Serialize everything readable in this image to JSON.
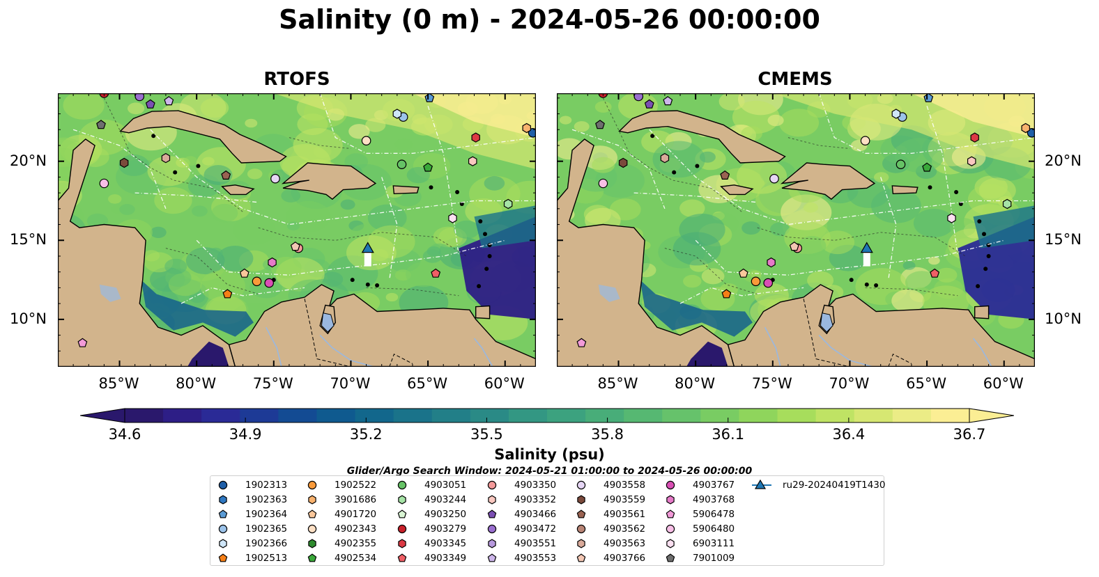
{
  "title": "Salinity (0 m) - 2024-05-26 00:00:00",
  "panels": [
    {
      "title": "RTOFS",
      "model": "rtofs"
    },
    {
      "title": "CMEMS",
      "model": "cmems"
    }
  ],
  "map_extent": {
    "lon": [
      -89,
      -58
    ],
    "lat": [
      7,
      24.3
    ]
  },
  "lon_ticks": [
    "85°W",
    "80°W",
    "75°W",
    "70°W",
    "65°W",
    "60°W"
  ],
  "lon_tick_values": [
    -85,
    -80,
    -75,
    -70,
    -65,
    -60
  ],
  "lat_ticks": [
    "20°N",
    "15°N",
    "10°N"
  ],
  "lat_tick_values": [
    20,
    15,
    10
  ],
  "colorbar": {
    "label": "Salinity (psu)",
    "tick_labels": [
      "34.6",
      "34.9",
      "35.2",
      "35.5",
      "35.8",
      "36.1",
      "36.4",
      "36.7"
    ],
    "min": 34.6,
    "max": 36.7,
    "extend": "both",
    "colormap": "haline",
    "colors": [
      "#2a186c",
      "#2d1e86",
      "#2a2a96",
      "#1d3a96",
      "#134b93",
      "#0f5a8f",
      "#12678c",
      "#1a738a",
      "#227f88",
      "#2a8a86",
      "#339783",
      "#3ca27f",
      "#48ad79",
      "#56b872",
      "#66c26b",
      "#79cc63",
      "#8fd55c",
      "#a7dd5c",
      "#bfe364",
      "#d6e772",
      "#ebec86",
      "#fbee94"
    ]
  },
  "search_window": "Glider/Argo Search Window: 2024-05-21 01:00:00 to 2024-05-26 00:00:00",
  "land_color": "#d2b48c",
  "legend": [
    {
      "id": "1902313",
      "marker": "circle",
      "color": "#1f5fa8"
    },
    {
      "id": "1902363",
      "marker": "hexagon",
      "color": "#2f78c2"
    },
    {
      "id": "1902364",
      "marker": "pentagon",
      "color": "#5b9bd5"
    },
    {
      "id": "1902365",
      "marker": "circle",
      "color": "#9cc3ea"
    },
    {
      "id": "1902366",
      "marker": "hexagon",
      "color": "#cfe6f8"
    },
    {
      "id": "1902513",
      "marker": "pentagon",
      "color": "#f57f17"
    },
    {
      "id": "1902522",
      "marker": "circle",
      "color": "#f99a3a"
    },
    {
      "id": "3901686",
      "marker": "hexagon",
      "color": "#f8b26e"
    },
    {
      "id": "4901720",
      "marker": "pentagon",
      "color": "#f9c79b"
    },
    {
      "id": "4902343",
      "marker": "circle",
      "color": "#fde0c5"
    },
    {
      "id": "4902355",
      "marker": "hexagon",
      "color": "#2e8b2e"
    },
    {
      "id": "4902534",
      "marker": "pentagon",
      "color": "#3aa83a"
    },
    {
      "id": "4903051",
      "marker": "circle",
      "color": "#66c266"
    },
    {
      "id": "4903244",
      "marker": "hexagon",
      "color": "#a6e3a6"
    },
    {
      "id": "4903250",
      "marker": "pentagon",
      "color": "#d9f5d4"
    },
    {
      "id": "4903279",
      "marker": "circle",
      "color": "#c8202a"
    },
    {
      "id": "4903345",
      "marker": "hexagon",
      "color": "#dc3a44"
    },
    {
      "id": "4903349",
      "marker": "pentagon",
      "color": "#ef5f66"
    },
    {
      "id": "4903350",
      "marker": "circle",
      "color": "#f49a9a"
    },
    {
      "id": "4903352",
      "marker": "hexagon",
      "color": "#f9c8c0"
    },
    {
      "id": "4903466",
      "marker": "pentagon",
      "color": "#7b4fb3"
    },
    {
      "id": "4903472",
      "marker": "circle",
      "color": "#9a6fcf"
    },
    {
      "id": "4903551",
      "marker": "hexagon",
      "color": "#b799dd"
    },
    {
      "id": "4903553",
      "marker": "pentagon",
      "color": "#cdb6ea"
    },
    {
      "id": "4903558",
      "marker": "circle",
      "color": "#e6d6f5"
    },
    {
      "id": "4903559",
      "marker": "hexagon",
      "color": "#7b4a3c"
    },
    {
      "id": "4903561",
      "marker": "pentagon",
      "color": "#9a6352"
    },
    {
      "id": "4903562",
      "marker": "circle",
      "color": "#b98576"
    },
    {
      "id": "4903563",
      "marker": "hexagon",
      "color": "#d9aa9a"
    },
    {
      "id": "4903766",
      "marker": "pentagon",
      "color": "#f3c7b4"
    },
    {
      "id": "4903767",
      "marker": "circle",
      "color": "#d94fb4"
    },
    {
      "id": "4903768",
      "marker": "hexagon",
      "color": "#e67ac8"
    },
    {
      "id": "5906478",
      "marker": "pentagon",
      "color": "#f29ad8"
    },
    {
      "id": "5906480",
      "marker": "circle",
      "color": "#f7bfe6"
    },
    {
      "id": "6903111",
      "marker": "hexagon",
      "color": "#fbe0f1"
    },
    {
      "id": "7901009",
      "marker": "pentagon",
      "color": "#6e6e6e"
    },
    {
      "id": "ru29-20240419T1430",
      "marker": "triangle-line",
      "color": "#1f77b4"
    }
  ],
  "floats": [
    {
      "id": "1902313",
      "lon": -58.2,
      "lat": 21.8
    },
    {
      "id": "1902364",
      "lon": -64.9,
      "lat": 24.0
    },
    {
      "id": "1902365",
      "lon": -66.6,
      "lat": 22.8
    },
    {
      "id": "1902366",
      "lon": -67.0,
      "lat": 23.0
    },
    {
      "id": "1902513",
      "lon": -78.0,
      "lat": 11.6
    },
    {
      "id": "1902522",
      "lon": -76.1,
      "lat": 12.4
    },
    {
      "id": "4901720",
      "lon": -76.9,
      "lat": 12.9
    },
    {
      "id": "4902343",
      "lon": -69.0,
      "lat": 21.3
    },
    {
      "id": "4903051",
      "lon": -66.7,
      "lat": 19.8
    },
    {
      "id": "4902534",
      "lon": -65.0,
      "lat": 19.6
    },
    {
      "id": "4903345",
      "lon": -61.9,
      "lat": 21.5
    },
    {
      "id": "4903352",
      "lon": -62.1,
      "lat": 20.0
    },
    {
      "id": "4903349",
      "lon": -64.5,
      "lat": 12.9
    },
    {
      "id": "4903350",
      "lon": -73.4,
      "lat": 14.5
    },
    {
      "id": "4903472",
      "lon": -83.7,
      "lat": 24.1
    },
    {
      "id": "4903466",
      "lon": -83.0,
      "lat": 23.6
    },
    {
      "id": "4903553",
      "lon": -81.8,
      "lat": 23.8
    },
    {
      "id": "4903558",
      "lon": -74.9,
      "lat": 18.9
    },
    {
      "id": "4903559",
      "lon": -84.7,
      "lat": 19.9
    },
    {
      "id": "4903561",
      "lon": -78.1,
      "lat": 19.1
    },
    {
      "id": "4903563",
      "lon": -82.0,
      "lat": 20.2
    },
    {
      "id": "4903766",
      "lon": -73.6,
      "lat": 14.6
    },
    {
      "id": "4903767",
      "lon": -75.3,
      "lat": 12.3
    },
    {
      "id": "4903768",
      "lon": -75.1,
      "lat": 13.6
    },
    {
      "id": "5906478",
      "lon": -87.4,
      "lat": 8.5
    },
    {
      "id": "5906480",
      "lon": -86.0,
      "lat": 18.6
    },
    {
      "id": "6903111",
      "lon": -63.4,
      "lat": 16.4
    },
    {
      "id": "7901009",
      "lon": -86.2,
      "lat": 22.3
    },
    {
      "id": "3901686",
      "lon": -58.6,
      "lat": 22.1
    },
    {
      "id": "4903244",
      "lon": -59.8,
      "lat": 17.3
    },
    {
      "id": "4903279",
      "lon": -86.0,
      "lat": 24.3
    }
  ],
  "glider": {
    "id": "ru29-20240419T1430",
    "lon": -68.9,
    "lat": 14.5
  }
}
